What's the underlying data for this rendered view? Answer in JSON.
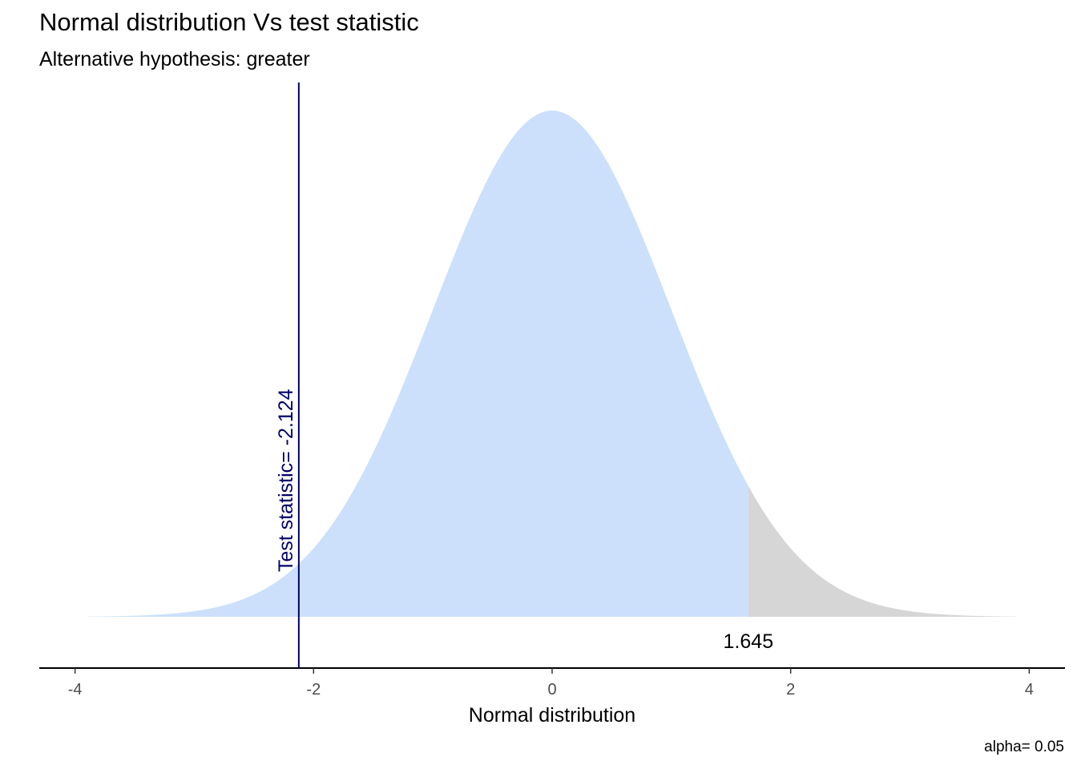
{
  "chart_data": {
    "type": "area",
    "title": "Normal distribution Vs test statistic",
    "subtitle": "Alternative hypothesis: greater",
    "caption": "alpha= 0.05",
    "xlabel": "Normal distribution",
    "ylabel": "",
    "xlim": [
      -4.3,
      4.3
    ],
    "curve_range": [
      -3.89,
      3.89
    ],
    "x_ticks": [
      -4,
      -2,
      0,
      2,
      4
    ],
    "x_tick_labels": [
      "-4",
      "-2",
      "0",
      "2",
      "4"
    ],
    "mean": 0,
    "sd": 1,
    "alpha": 0.05,
    "alternative": "greater",
    "critical_value": 1.645,
    "critical_label": "1.645",
    "test_statistic": -2.124,
    "test_statistic_label": "Test statistic= -2.124",
    "grid": false,
    "colors": {
      "acceptance_fill": "#cce0fc",
      "rejection_fill": "#d6d6d6",
      "statistic_line": "#00006b",
      "axis_line": "#000000"
    }
  }
}
